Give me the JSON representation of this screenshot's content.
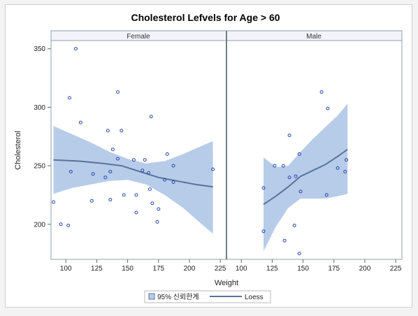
{
  "chart_data": {
    "type": "scatter",
    "title": "Cholesterol Lefvels for Age > 60",
    "xlabel": "Weight",
    "ylabel": "Cholesterol",
    "xlim": [
      88,
      230
    ],
    "ylim": [
      170,
      357
    ],
    "x_ticks": [
      100,
      125,
      150,
      175,
      200,
      225
    ],
    "y_ticks": [
      200,
      250,
      300,
      350
    ],
    "grid": false,
    "legend_position": "bottom",
    "colors": {
      "points": "#2a46b8",
      "loess": "#56749e",
      "band": "#b7cce8",
      "panel_header": "#f3f3fb",
      "frame": "#8ea0a8"
    },
    "legend": {
      "band_label": "95% 신뢰한계",
      "line_label": "Loess"
    },
    "panels": [
      {
        "name": "Female",
        "points": [
          [
            90,
            219
          ],
          [
            96,
            200
          ],
          [
            102,
            199
          ],
          [
            103,
            308
          ],
          [
            104,
            245
          ],
          [
            108,
            350
          ],
          [
            112,
            287
          ],
          [
            121,
            220
          ],
          [
            122,
            243
          ],
          [
            132,
            240
          ],
          [
            134,
            280
          ],
          [
            136,
            245
          ],
          [
            136,
            221
          ],
          [
            138,
            264
          ],
          [
            142,
            256
          ],
          [
            142,
            313
          ],
          [
            145,
            280
          ],
          [
            147,
            225
          ],
          [
            155,
            255
          ],
          [
            157,
            225
          ],
          [
            157,
            210
          ],
          [
            162,
            246
          ],
          [
            164,
            255
          ],
          [
            167,
            244
          ],
          [
            168,
            230
          ],
          [
            169,
            292
          ],
          [
            170,
            218
          ],
          [
            174,
            202
          ],
          [
            175,
            213
          ],
          [
            180,
            238
          ],
          [
            182,
            260
          ],
          [
            187,
            250
          ],
          [
            187,
            236
          ],
          [
            219,
            247
          ]
        ],
        "loess": [
          [
            90,
            255
          ],
          [
            110,
            254
          ],
          [
            130,
            252
          ],
          [
            145,
            250
          ],
          [
            160,
            245
          ],
          [
            175,
            240
          ],
          [
            190,
            237
          ],
          [
            205,
            234
          ],
          [
            219,
            232
          ]
        ],
        "ci_upper": [
          [
            90,
            284
          ],
          [
            105,
            277
          ],
          [
            120,
            270
          ],
          [
            135,
            262
          ],
          [
            150,
            256
          ],
          [
            165,
            252
          ],
          [
            180,
            254
          ],
          [
            195,
            260
          ],
          [
            210,
            267
          ],
          [
            219,
            271
          ]
        ],
        "ci_lower": [
          [
            90,
            226
          ],
          [
            105,
            231
          ],
          [
            120,
            234
          ],
          [
            135,
            237
          ],
          [
            150,
            238
          ],
          [
            165,
            234
          ],
          [
            180,
            225
          ],
          [
            195,
            214
          ],
          [
            210,
            200
          ],
          [
            219,
            192
          ]
        ]
      },
      {
        "name": "Male",
        "points": [
          [
            118,
            231
          ],
          [
            118,
            194
          ],
          [
            127,
            250
          ],
          [
            134,
            250
          ],
          [
            135,
            186
          ],
          [
            139,
            276
          ],
          [
            139,
            240
          ],
          [
            143,
            199
          ],
          [
            144,
            241
          ],
          [
            147,
            260
          ],
          [
            147,
            175
          ],
          [
            148,
            228
          ],
          [
            165,
            313
          ],
          [
            169,
            225
          ],
          [
            170,
            299
          ],
          [
            178,
            248
          ],
          [
            184,
            245
          ],
          [
            185,
            255
          ]
        ],
        "loess": [
          [
            118,
            217
          ],
          [
            128,
            224
          ],
          [
            138,
            232
          ],
          [
            148,
            241
          ],
          [
            158,
            246
          ],
          [
            168,
            251
          ],
          [
            178,
            258
          ],
          [
            186,
            264
          ]
        ],
        "ci_upper": [
          [
            118,
            257
          ],
          [
            128,
            249
          ],
          [
            138,
            250
          ],
          [
            148,
            262
          ],
          [
            158,
            273
          ],
          [
            168,
            283
          ],
          [
            178,
            293
          ],
          [
            186,
            303
          ]
        ],
        "ci_lower": [
          [
            118,
            177
          ],
          [
            128,
            198
          ],
          [
            138,
            214
          ],
          [
            148,
            222
          ],
          [
            158,
            222
          ],
          [
            168,
            222
          ],
          [
            178,
            224
          ],
          [
            186,
            226
          ]
        ]
      }
    ]
  }
}
